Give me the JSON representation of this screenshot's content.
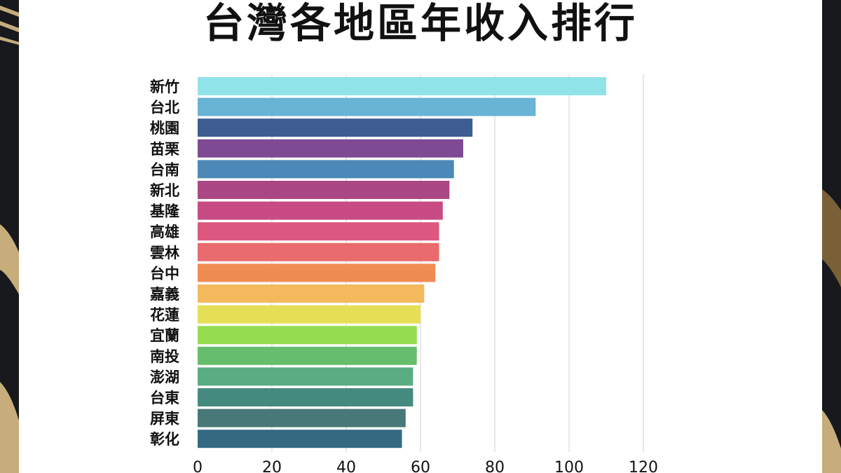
{
  "title": "台灣各地區年收入排行",
  "chart_data": {
    "type": "bar",
    "orientation": "horizontal",
    "title": "台灣各地區年收入排行",
    "categories": [
      "新竹",
      "台北",
      "桃園",
      "苗栗",
      "台南",
      "新北",
      "基隆",
      "高雄",
      "雲林",
      "台中",
      "嘉義",
      "花蓮",
      "宜蘭",
      "南投",
      "澎湖",
      "台東",
      "屏東",
      "彰化"
    ],
    "values": [
      110,
      91,
      74,
      71.5,
      69,
      67.8,
      66,
      65,
      65,
      64,
      61,
      60,
      59,
      59,
      58,
      58,
      56,
      55
    ],
    "colors": [
      "#8fe3e9",
      "#69b3d5",
      "#3d5d91",
      "#7e4a94",
      "#4c89b8",
      "#ab4785",
      "#c84b84",
      "#dc5880",
      "#ea6b6d",
      "#ef8c53",
      "#f3b95c",
      "#e6df55",
      "#95dd4f",
      "#66bd6c",
      "#5aac82",
      "#448a7e",
      "#487878",
      "#336a82"
    ],
    "xlim": [
      0,
      120
    ],
    "xticks": [
      0,
      20,
      40,
      60,
      80,
      100,
      120
    ],
    "grid": true,
    "xlabel": "",
    "ylabel": ""
  }
}
